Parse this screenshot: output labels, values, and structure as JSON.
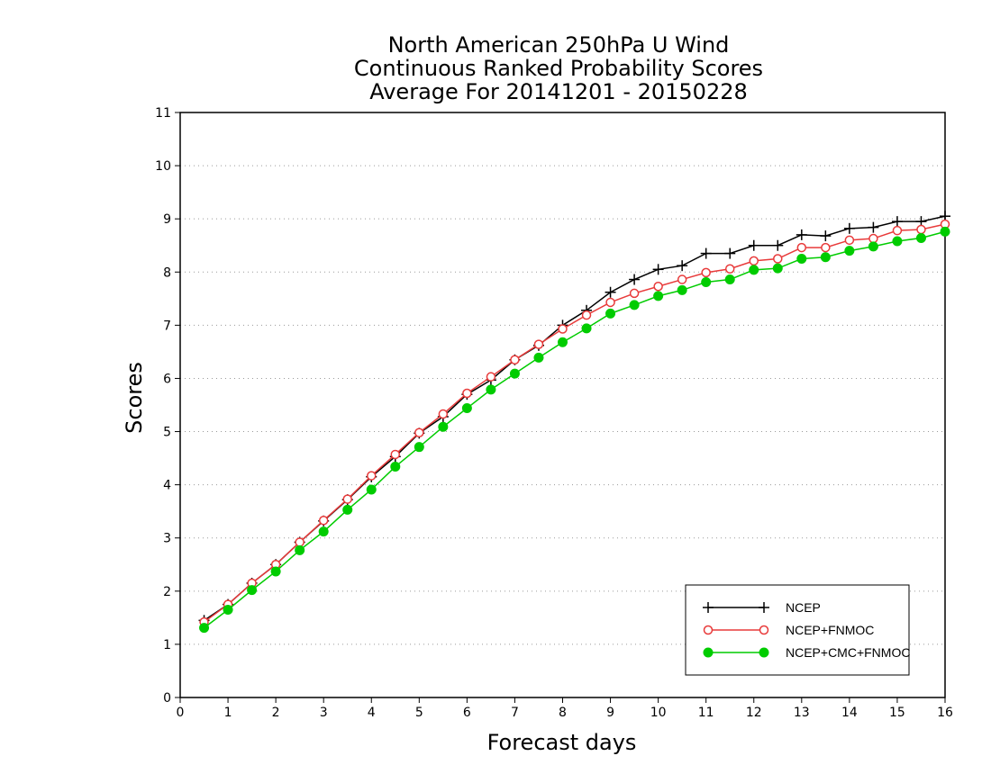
{
  "chart_data": {
    "type": "line",
    "title": [
      "North American 250hPa U Wind",
      "Continuous Ranked Probability Scores",
      "Average For 20141201 - 20150228"
    ],
    "xlabel": "Forecast days",
    "ylabel": "Scores",
    "xlim": [
      0,
      16
    ],
    "ylim": [
      0,
      11
    ],
    "xticks": [
      "0",
      "1",
      "2",
      "3",
      "4",
      "5",
      "6",
      "7",
      "8",
      "9",
      "10",
      "11",
      "12",
      "13",
      "14",
      "15",
      "16"
    ],
    "yticks": [
      "0",
      "1",
      "2",
      "3",
      "4",
      "5",
      "6",
      "7",
      "8",
      "9",
      "10",
      "11"
    ],
    "grid": "horizontal dotted",
    "legend_position": "bottom-right",
    "x": [
      0.5,
      1,
      1.5,
      2,
      2.5,
      3,
      3.5,
      4,
      4.5,
      5,
      5.5,
      6,
      6.5,
      7,
      7.5,
      8,
      8.5,
      9,
      9.5,
      10,
      10.5,
      11,
      11.5,
      12,
      12.5,
      13,
      13.5,
      14,
      14.5,
      15,
      15.5,
      16
    ],
    "series": [
      {
        "name": "NCEP",
        "color": "#000000",
        "marker": "plus",
        "values": [
          1.45,
          1.75,
          2.15,
          2.5,
          2.92,
          3.32,
          3.72,
          4.15,
          4.53,
          4.97,
          5.28,
          5.7,
          5.97,
          6.35,
          6.62,
          7.0,
          7.28,
          7.62,
          7.86,
          8.05,
          8.12,
          8.35,
          8.35,
          8.5,
          8.5,
          8.7,
          8.68,
          8.82,
          8.84,
          8.95,
          8.95,
          9.05
        ]
      },
      {
        "name": "NCEP+FNMOC",
        "color": "#e83a3a",
        "marker": "open-circle",
        "values": [
          1.42,
          1.75,
          2.15,
          2.5,
          2.92,
          3.33,
          3.73,
          4.17,
          4.57,
          4.98,
          5.33,
          5.72,
          6.03,
          6.35,
          6.64,
          6.93,
          7.19,
          7.43,
          7.6,
          7.73,
          7.86,
          7.99,
          8.06,
          8.21,
          8.25,
          8.46,
          8.46,
          8.6,
          8.63,
          8.78,
          8.8,
          8.9
        ]
      },
      {
        "name": "NCEP+CMC+FNMOC",
        "color": "#00cc00",
        "marker": "filled-circle",
        "values": [
          1.31,
          1.65,
          2.02,
          2.37,
          2.77,
          3.12,
          3.53,
          3.91,
          4.34,
          4.71,
          5.09,
          5.44,
          5.79,
          6.09,
          6.39,
          6.68,
          6.94,
          7.22,
          7.38,
          7.55,
          7.66,
          7.81,
          7.86,
          8.04,
          8.07,
          8.25,
          8.28,
          8.4,
          8.48,
          8.58,
          8.64,
          8.76
        ]
      }
    ]
  }
}
